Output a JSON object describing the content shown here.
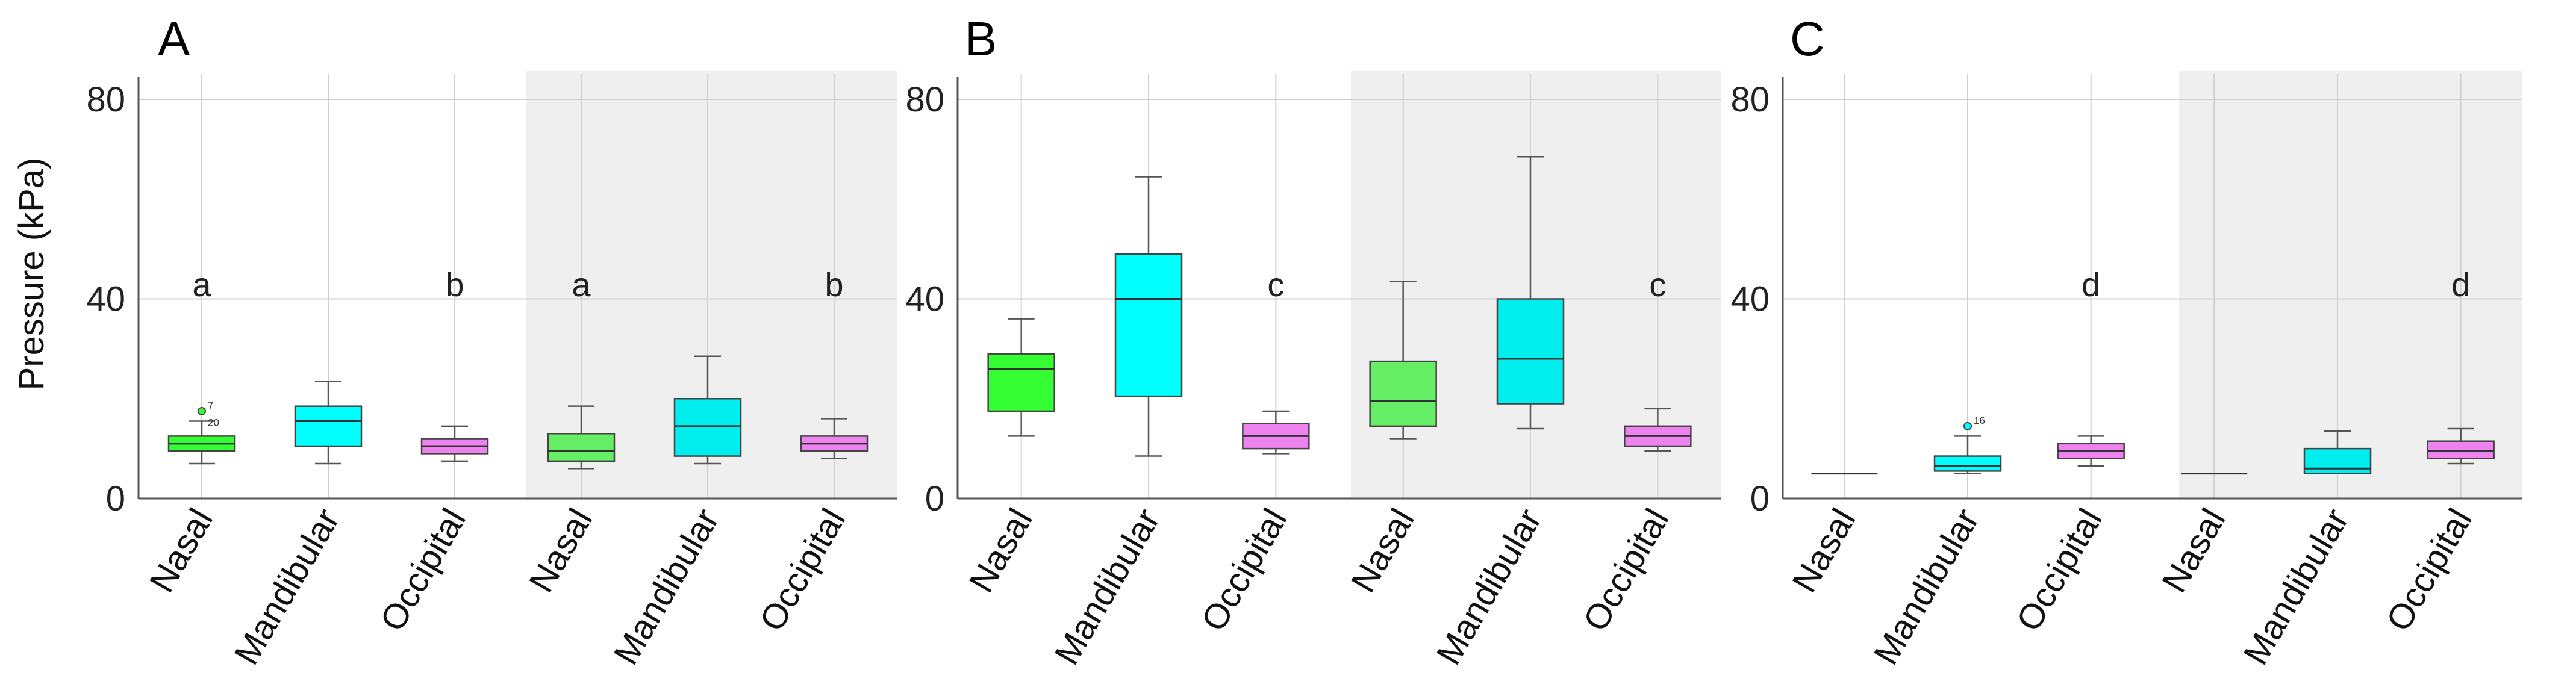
{
  "figure": {
    "y_axis_title": "Pressure (kPa)"
  },
  "chart_data": [
    {
      "type": "box",
      "title": "A",
      "ylabel": "Pressure (kPa)",
      "ylim": [
        0,
        84
      ],
      "yticks": [
        0,
        40,
        80
      ],
      "grid": true,
      "shaded_group": "right half",
      "categories": [
        "Nasal",
        "Mandibular",
        "Occipital",
        "Nasal",
        "Mandibular",
        "Occipital"
      ],
      "boxes": [
        {
          "min": 7,
          "q1": 9.5,
          "median": 11,
          "q3": 12.5,
          "max": 15.5,
          "color": "#33ff33",
          "letter": "a",
          "outliers": [
            {
              "value": 17.5,
              "label": "7"
            },
            {
              "value": 15.5,
              "label": "20"
            }
          ]
        },
        {
          "min": 7,
          "q1": 10.5,
          "median": 15.5,
          "q3": 18.5,
          "max": 23.5,
          "color": "#00ffff",
          "letter": "",
          "outliers": []
        },
        {
          "min": 7.5,
          "q1": 9,
          "median": 10.5,
          "q3": 12,
          "max": 14.5,
          "color": "#ee82ee",
          "letter": "b",
          "outliers": []
        },
        {
          "min": 6,
          "q1": 7.5,
          "median": 9.5,
          "q3": 13,
          "max": 18.5,
          "color": "#66ee66",
          "letter": "a",
          "outliers": []
        },
        {
          "min": 7,
          "q1": 8.5,
          "median": 14.5,
          "q3": 20,
          "max": 28.5,
          "color": "#00eeee",
          "letter": "",
          "outliers": []
        },
        {
          "min": 8,
          "q1": 9.5,
          "median": 11,
          "q3": 12.5,
          "max": 16,
          "color": "#ee82ee",
          "letter": "b",
          "outliers": []
        }
      ]
    },
    {
      "type": "box",
      "title": "B",
      "ylabel": "",
      "ylim": [
        0,
        84
      ],
      "yticks": [
        0,
        40,
        80
      ],
      "grid": true,
      "shaded_group": "right half",
      "categories": [
        "Nasal",
        "Mandibular",
        "Occipital",
        "Nasal",
        "Mandibular",
        "Occipital"
      ],
      "boxes": [
        {
          "min": 12.5,
          "q1": 17.5,
          "median": 26,
          "q3": 29,
          "max": 36,
          "color": "#33ff33",
          "letter": "",
          "outliers": []
        },
        {
          "min": 8.5,
          "q1": 20.5,
          "median": 40,
          "q3": 49,
          "max": 64.5,
          "color": "#00ffff",
          "letter": "",
          "outliers": []
        },
        {
          "min": 9,
          "q1": 10,
          "median": 12.5,
          "q3": 15,
          "max": 17.5,
          "color": "#ee82ee",
          "letter": "c",
          "outliers": []
        },
        {
          "min": 12,
          "q1": 14.5,
          "median": 19.5,
          "q3": 27.5,
          "max": 43.5,
          "color": "#66ee66",
          "letter": "",
          "outliers": []
        },
        {
          "min": 14,
          "q1": 19,
          "median": 28,
          "q3": 40,
          "max": 68.5,
          "color": "#00eeee",
          "letter": "",
          "outliers": []
        },
        {
          "min": 9.5,
          "q1": 10.5,
          "median": 12.5,
          "q3": 14.5,
          "max": 18,
          "color": "#ee82ee",
          "letter": "c",
          "outliers": []
        }
      ]
    },
    {
      "type": "box",
      "title": "C",
      "ylabel": "",
      "ylim": [
        0,
        84
      ],
      "yticks": [
        0,
        40,
        80
      ],
      "grid": true,
      "shaded_group": "right half",
      "categories": [
        "Nasal",
        "Mandibular",
        "Occipital",
        "Nasal",
        "Mandibular",
        "Occipital"
      ],
      "boxes": [
        {
          "min": 5,
          "q1": 5,
          "median": 5,
          "q3": 5,
          "max": 5,
          "color": "#33ff33",
          "letter": "",
          "outliers": []
        },
        {
          "min": 5,
          "q1": 5.5,
          "median": 6.5,
          "q3": 8.5,
          "max": 12.5,
          "color": "#00ffff",
          "letter": "",
          "outliers": [
            {
              "value": 14.5,
              "label": "16"
            }
          ]
        },
        {
          "min": 6.5,
          "q1": 8,
          "median": 9.5,
          "q3": 11,
          "max": 12.5,
          "color": "#ee82ee",
          "letter": "d",
          "outliers": []
        },
        {
          "min": 5,
          "q1": 5,
          "median": 5,
          "q3": 5,
          "max": 5,
          "color": "#33ff33",
          "letter": "",
          "outliers": []
        },
        {
          "min": 5,
          "q1": 5,
          "median": 6,
          "q3": 10,
          "max": 13.5,
          "color": "#00eeee",
          "letter": "",
          "outliers": []
        },
        {
          "min": 7,
          "q1": 8,
          "median": 9.5,
          "q3": 11.5,
          "max": 14,
          "color": "#ee82ee",
          "letter": "d",
          "outliers": []
        }
      ]
    }
  ]
}
